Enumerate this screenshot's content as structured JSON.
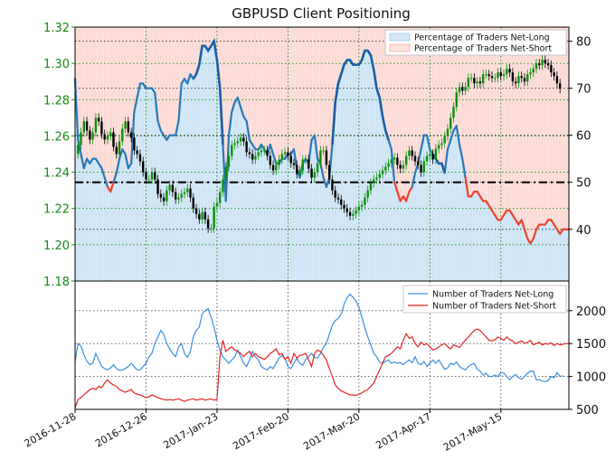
{
  "chart_data": [
    {
      "type": "line",
      "title": "GBPUSD Client Positioning",
      "x_dates": [
        "2016-11-28",
        "2016-12-26",
        "2017-Jan-23",
        "2017-Feb-20",
        "2017-Mar-20",
        "2017-Apr-17",
        "2017-May-15"
      ],
      "left_axis": {
        "ticks": [
          "1.18",
          "1.20",
          "1.22",
          "1.24",
          "1.26",
          "1.28",
          "1.30",
          "1.32"
        ],
        "ylim": [
          1.18,
          1.32
        ],
        "color": "#178a17"
      },
      "right_axis": {
        "ticks": [
          "40",
          "50",
          "60",
          "70",
          "80"
        ],
        "ylim": [
          29,
          83
        ]
      },
      "reference_line_right": 50,
      "legend": {
        "long_label": "Percentage of Traders Net-Long",
        "short_label": "Percentage of Traders Net-Short",
        "placement": "top-right"
      },
      "colors": {
        "long_line": "#2a78b8",
        "long_line_strong": "#1b5fa5",
        "short_line": "#e8452c",
        "long_fill": "#d4e8f7",
        "short_fill": "#fde0dc"
      },
      "price_gbpusd": [
        1.25,
        1.255,
        1.262,
        1.268,
        1.263,
        1.258,
        1.262,
        1.27,
        1.268,
        1.261,
        1.258,
        1.26,
        1.262,
        1.254,
        1.25,
        1.257,
        1.264,
        1.268,
        1.262,
        1.259,
        1.252,
        1.25,
        1.246,
        1.24,
        1.236,
        1.236,
        1.24,
        1.236,
        1.228,
        1.226,
        1.224,
        1.23,
        1.233,
        1.229,
        1.225,
        1.226,
        1.228,
        1.229,
        1.231,
        1.226,
        1.22,
        1.217,
        1.214,
        1.218,
        1.214,
        1.209,
        1.209,
        1.221,
        1.223,
        1.229,
        1.236,
        1.243,
        1.249,
        1.255,
        1.256,
        1.257,
        1.259,
        1.257,
        1.251,
        1.25,
        1.247,
        1.249,
        1.251,
        1.252,
        1.252,
        1.249,
        1.244,
        1.241,
        1.244,
        1.247,
        1.25,
        1.251,
        1.249,
        1.245,
        1.244,
        1.239,
        1.241,
        1.247,
        1.247,
        1.242,
        1.237,
        1.24,
        1.245,
        1.252,
        1.252,
        1.244,
        1.236,
        1.23,
        1.226,
        1.225,
        1.222,
        1.22,
        1.218,
        1.216,
        1.217,
        1.219,
        1.221,
        1.222,
        1.226,
        1.23,
        1.234,
        1.236,
        1.237,
        1.239,
        1.241,
        1.243,
        1.245,
        1.247,
        1.248,
        1.244,
        1.242,
        1.244,
        1.249,
        1.252,
        1.249,
        1.246,
        1.244,
        1.24,
        1.246,
        1.249,
        1.25,
        1.247,
        1.253,
        1.255,
        1.256,
        1.26,
        1.264,
        1.27,
        1.276,
        1.284,
        1.287,
        1.285,
        1.287,
        1.292,
        1.292,
        1.289,
        1.29,
        1.289,
        1.294,
        1.294,
        1.293,
        1.292,
        1.292,
        1.295,
        1.293,
        1.294,
        1.297,
        1.295,
        1.29,
        1.289,
        1.293,
        1.292,
        1.29,
        1.294,
        1.295,
        1.297,
        1.3,
        1.299,
        1.302,
        1.3,
        1.299,
        1.295,
        1.293,
        1.289,
        1.286
      ],
      "pct_long": [
        72,
        59,
        56,
        53,
        55,
        54,
        55,
        55,
        54,
        53,
        51,
        49,
        48,
        50,
        52,
        55,
        57,
        56,
        53,
        54,
        65,
        68,
        71,
        71,
        70,
        70,
        70,
        69,
        63,
        61,
        60,
        59,
        60,
        60,
        60,
        63,
        71,
        72,
        71,
        73,
        72,
        73,
        75,
        79,
        79,
        78,
        79,
        80,
        76,
        70,
        58,
        46,
        60,
        65,
        67,
        68,
        66,
        64,
        63,
        59,
        58,
        57,
        57,
        58,
        57,
        56,
        58,
        56,
        54,
        54,
        55,
        55,
        56,
        56,
        57,
        53,
        51,
        54,
        55,
        54,
        59,
        60,
        55,
        54,
        51,
        49,
        51,
        58,
        67,
        71,
        73,
        75,
        76,
        76,
        75,
        75,
        75,
        76,
        78,
        78,
        77,
        74,
        70,
        68,
        64,
        61,
        59,
        57,
        50,
        48,
        46,
        47,
        46,
        48,
        49,
        52,
        54,
        57,
        60,
        60,
        57,
        56,
        55,
        54,
        54,
        52,
        57,
        59,
        61,
        62,
        58,
        55,
        51,
        47,
        47,
        48,
        48,
        47,
        46,
        46,
        45,
        44,
        43,
        42,
        42,
        43,
        44,
        44,
        43,
        42,
        41,
        42,
        40,
        38,
        37,
        38,
        40,
        41,
        41,
        41,
        42,
        42,
        41,
        40,
        39,
        40,
        40,
        40
      ],
      "long_strong_segments": [
        [
          40,
          50
        ],
        [
          87,
          106
        ],
        [
          121,
          125
        ]
      ],
      "bottom_panel": {
        "legend": {
          "long_label": "Number of Traders Net-Long",
          "short_label": "Number of Traders Net-Short",
          "placement": "top-right"
        },
        "right_axis": {
          "ticks": [
            "500",
            "1000",
            "1500",
            "2000"
          ],
          "ylim": [
            500,
            2450
          ]
        },
        "net_long_count": [
          1230,
          1500,
          1460,
          1330,
          1230,
          1180,
          1200,
          1350,
          1250,
          1150,
          1120,
          1100,
          1130,
          1180,
          1120,
          1090,
          1100,
          1120,
          1150,
          1200,
          1150,
          1100,
          1100,
          1150,
          1200,
          1300,
          1350,
          1500,
          1600,
          1700,
          1640,
          1500,
          1420,
          1350,
          1300,
          1450,
          1500,
          1350,
          1290,
          1380,
          1600,
          1700,
          1750,
          1950,
          2000,
          2030,
          1900,
          1750,
          1550,
          1400,
          1300,
          1250,
          1200,
          1250,
          1300,
          1400,
          1300,
          1200,
          1150,
          1250,
          1380,
          1300,
          1250,
          1150,
          1120,
          1100,
          1150,
          1120,
          1200,
          1280,
          1320,
          1270,
          1150,
          1120,
          1200,
          1280,
          1200,
          1170,
          1260,
          1300,
          1350,
          1290,
          1280,
          1350,
          1450,
          1500,
          1640,
          1780,
          1850,
          1880,
          1950,
          2100,
          2200,
          2250,
          2200,
          2150,
          2050,
          1900,
          1740,
          1600,
          1480,
          1350,
          1300,
          1220,
          1200,
          1230,
          1250,
          1200,
          1220,
          1200,
          1210,
          1180,
          1220,
          1250,
          1210,
          1300,
          1200,
          1180,
          1230,
          1150,
          1200,
          1250,
          1200,
          1250,
          1180,
          1110,
          1130,
          1200,
          1180,
          1220,
          1150,
          1120,
          1100,
          1150,
          1180,
          1200,
          1110,
          1080,
          1020,
          1050,
          1000,
          1000,
          1020,
          1000,
          1060,
          1050,
          1000,
          950,
          1000,
          1030,
          980,
          960,
          1000,
          1050,
          1080,
          1080,
          950,
          950,
          930,
          920,
          940,
          1000,
          980,
          1060,
          1000,
          1010
        ],
        "net_short_count": [
          520,
          650,
          680,
          720,
          760,
          800,
          820,
          800,
          850,
          830,
          900,
          950,
          900,
          870,
          850,
          800,
          780,
          760,
          780,
          800,
          750,
          730,
          720,
          700,
          680,
          690,
          720,
          700,
          680,
          660,
          650,
          640,
          650,
          640,
          650,
          660,
          640,
          620,
          640,
          650,
          660,
          640,
          650,
          660,
          640,
          650,
          660,
          640,
          650,
          1300,
          1550,
          1380,
          1420,
          1450,
          1400,
          1380,
          1350,
          1300,
          1350,
          1380,
          1300,
          1350,
          1300,
          1280,
          1260,
          1300,
          1350,
          1380,
          1420,
          1330,
          1350,
          1260,
          1300,
          1200,
          1350,
          1280,
          1320,
          1330,
          1350,
          1250,
          1150,
          1350,
          1400,
          1380,
          1320,
          1250,
          1120,
          1000,
          870,
          820,
          780,
          760,
          740,
          720,
          720,
          710,
          730,
          750,
          780,
          800,
          850,
          900,
          1000,
          1100,
          1200,
          1300,
          1320,
          1350,
          1400,
          1450,
          1420,
          1550,
          1650,
          1580,
          1600,
          1500,
          1450,
          1520,
          1480,
          1500,
          1450,
          1400,
          1420,
          1450,
          1480,
          1500,
          1450,
          1420,
          1480,
          1460,
          1440,
          1500,
          1550,
          1600,
          1650,
          1700,
          1720,
          1700,
          1650,
          1600,
          1550,
          1540,
          1560,
          1600,
          1580,
          1550,
          1600,
          1560,
          1540,
          1500,
          1520,
          1540,
          1500,
          1520,
          1550,
          1480,
          1500,
          1520,
          1480,
          1500,
          1490,
          1510,
          1470,
          1500,
          1480,
          1490,
          1500,
          1500
        ]
      }
    }
  ]
}
